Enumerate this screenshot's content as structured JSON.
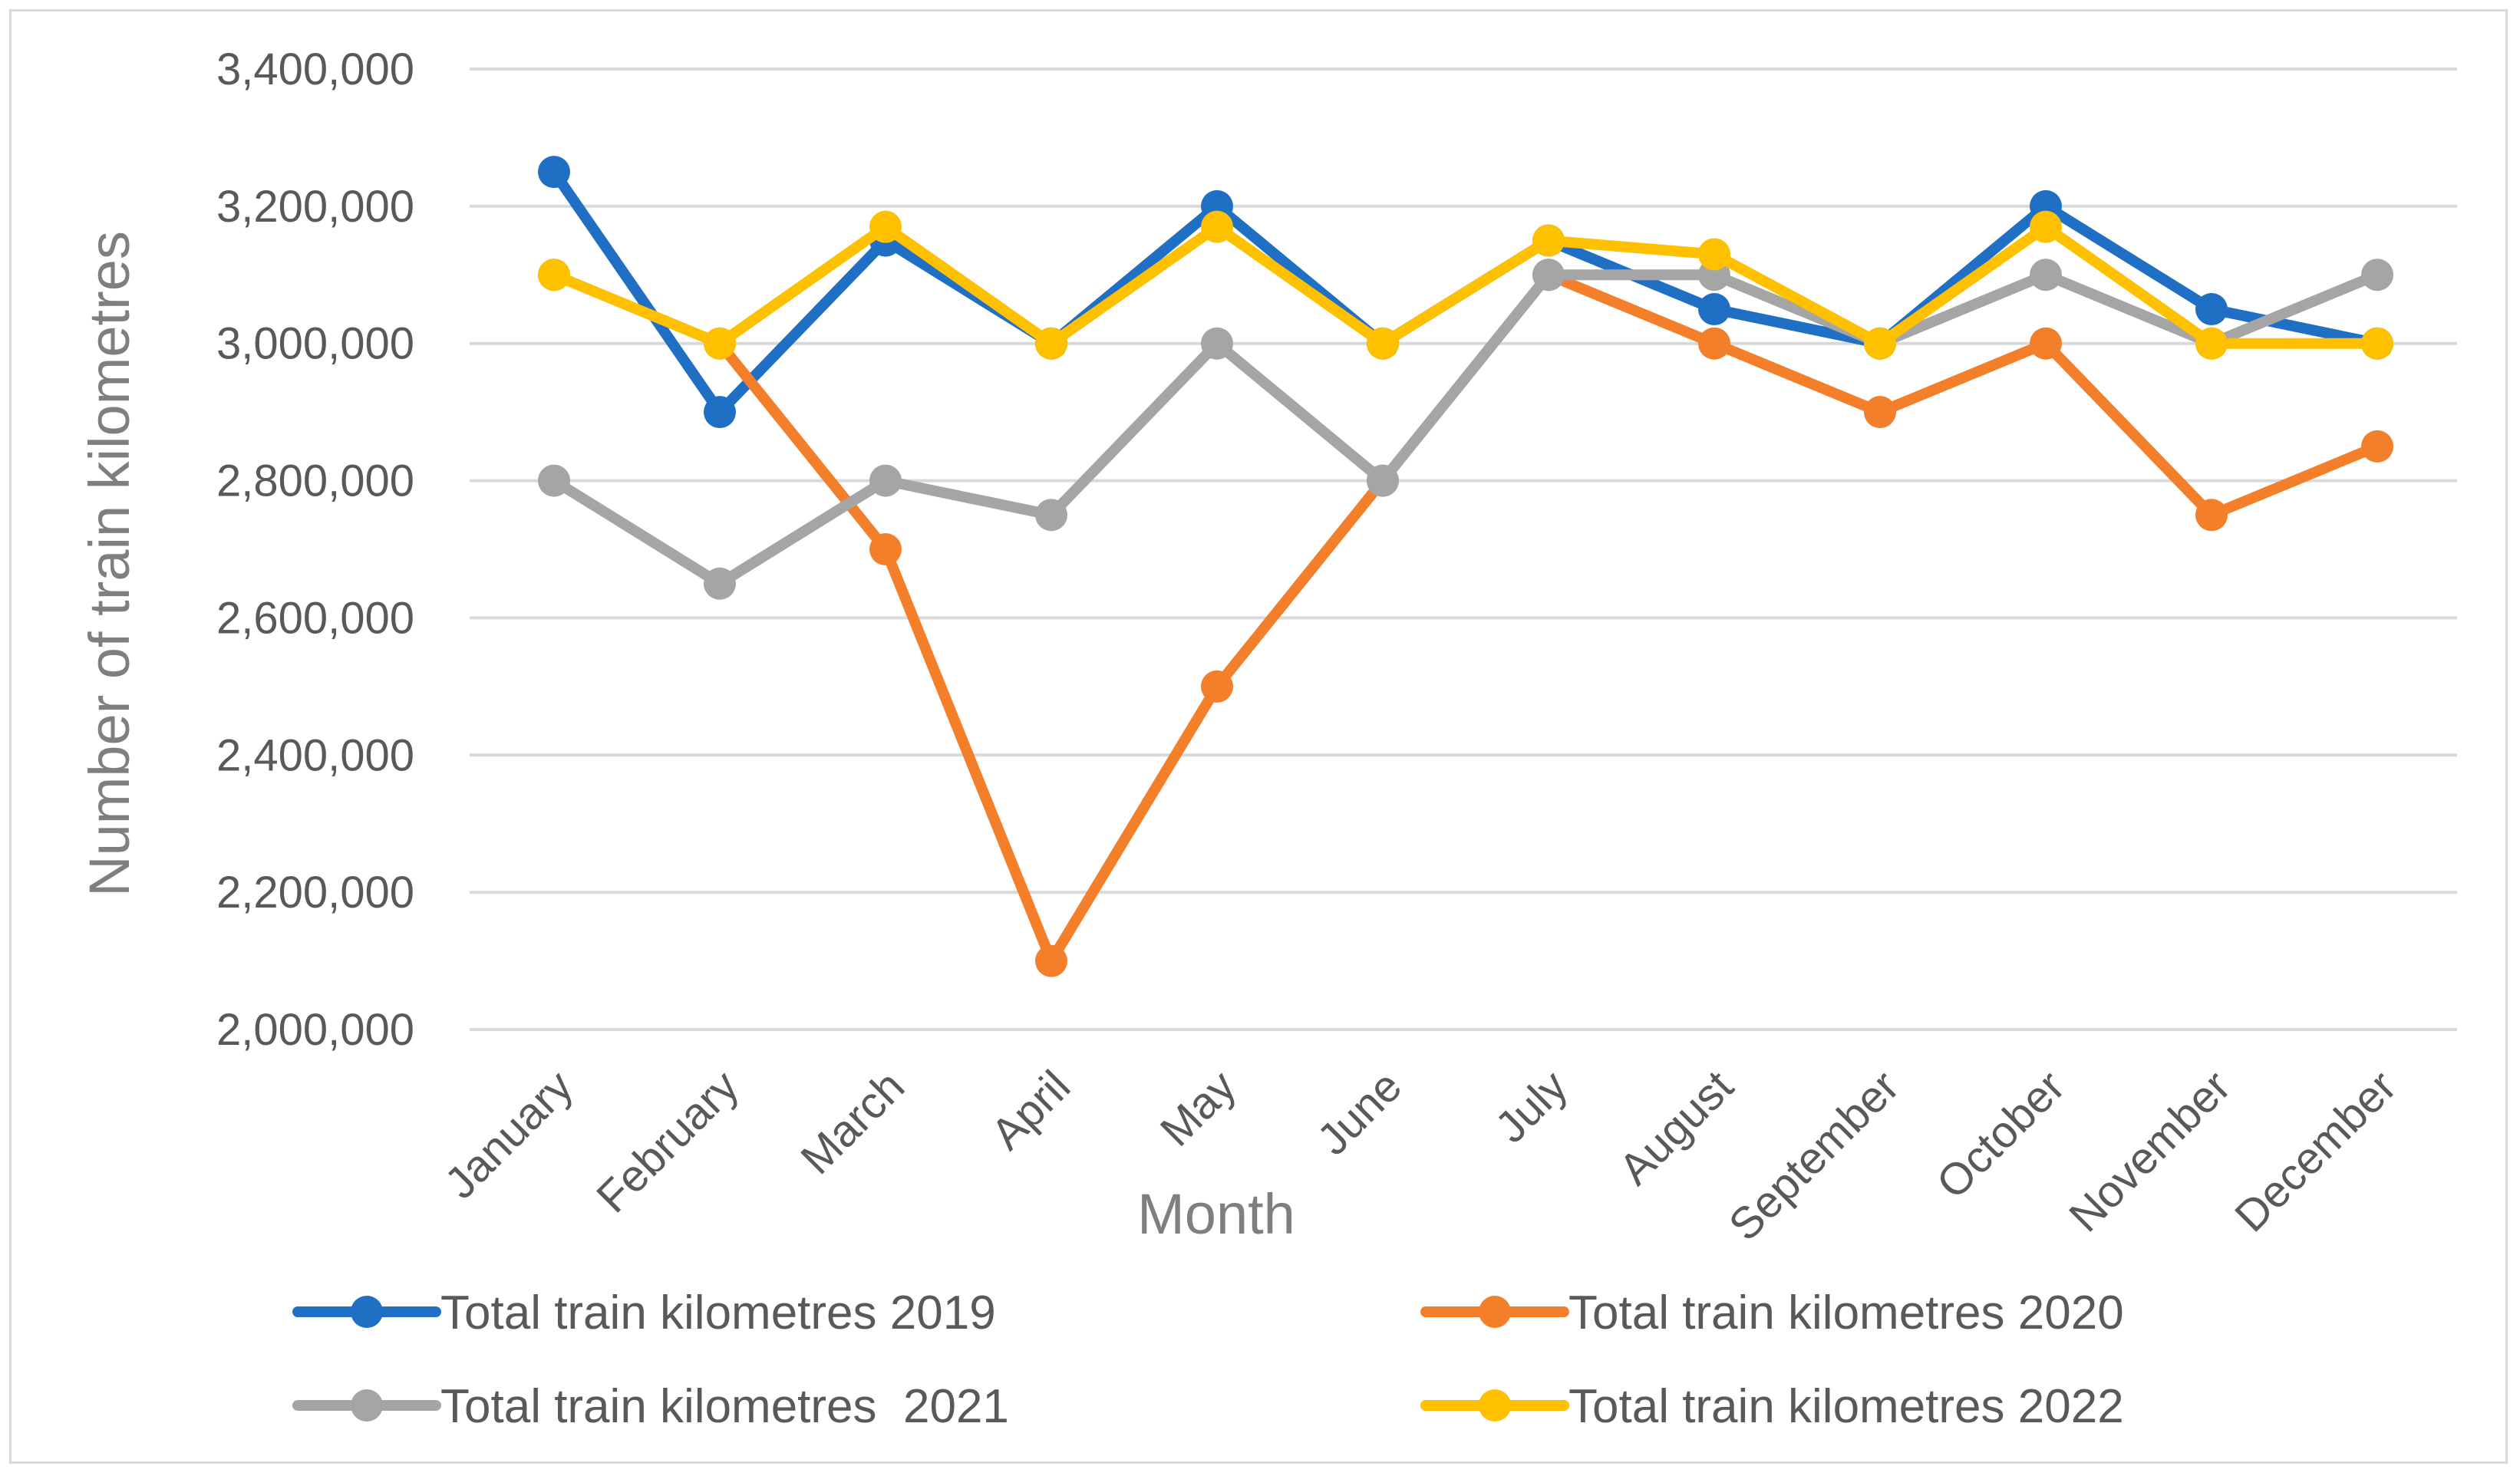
{
  "chart_data": {
    "type": "line",
    "title": "",
    "xlabel": "Month",
    "ylabel": "Number of train kilometres",
    "ylim": [
      2000000,
      3400000
    ],
    "ytick_step": 200000,
    "yticks": [
      "2,000,000",
      "2,200,000",
      "2,400,000",
      "2,600,000",
      "2,800,000",
      "3,000,000",
      "3,200,000",
      "3,400,000"
    ],
    "grid": true,
    "legend_position": "bottom",
    "categories": [
      "January",
      "February",
      "March",
      "April",
      "May",
      "June",
      "July",
      "August",
      "September",
      "October",
      "November",
      "December"
    ],
    "series": [
      {
        "name": "Total train kilometres 2019",
        "color": "#1f6fc5",
        "values": [
          3250000,
          2900000,
          3150000,
          3000000,
          3200000,
          3000000,
          3150000,
          3050000,
          3000000,
          3200000,
          3050000,
          3000000
        ]
      },
      {
        "name": "Total train kilometres 2020",
        "color": "#f47f2a",
        "values": [
          3100000,
          3000000,
          2700000,
          2100000,
          2500000,
          2800000,
          3100000,
          3000000,
          2900000,
          3000000,
          2750000,
          2850000
        ]
      },
      {
        "name": "Total train kilometres  2021",
        "color": "#a5a5a5",
        "values": [
          2800000,
          2650000,
          2800000,
          2750000,
          3000000,
          2800000,
          3100000,
          3100000,
          3000000,
          3100000,
          3000000,
          3100000
        ]
      },
      {
        "name": "Total train kilometres 2022",
        "color": "#ffc000",
        "values": [
          3100000,
          3000000,
          3170000,
          3000000,
          3170000,
          3000000,
          3150000,
          3130000,
          3000000,
          3170000,
          3000000,
          3000000
        ]
      }
    ]
  }
}
